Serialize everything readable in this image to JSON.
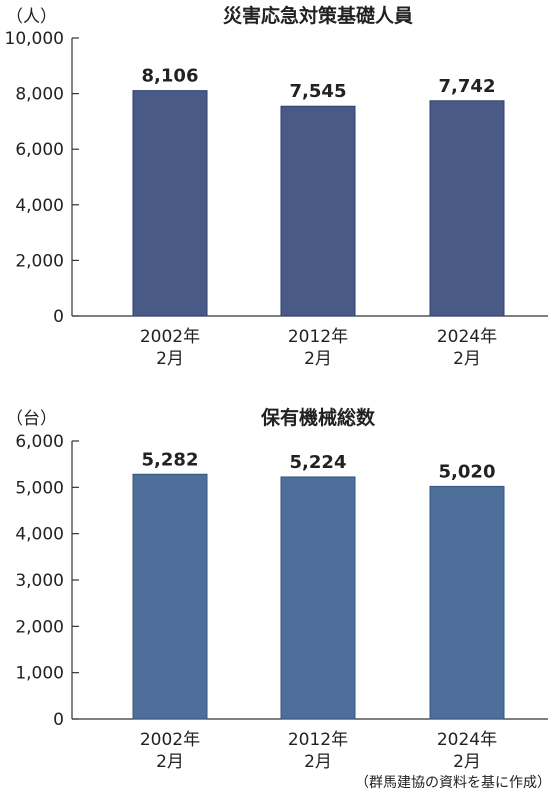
{
  "chart_data": [
    {
      "type": "bar",
      "title": "災害応急対策基礎人員",
      "unit_label": "（人）",
      "categories": [
        {
          "line1": "2002年",
          "line2": "2月"
        },
        {
          "line1": "2012年",
          "line2": "2月"
        },
        {
          "line1": "2024年",
          "line2": "2月"
        }
      ],
      "values": [
        8106,
        7545,
        7742
      ],
      "value_labels": [
        "8,106",
        "7,545",
        "7,742"
      ],
      "ylim": [
        0,
        10000
      ],
      "yticks": [
        0,
        2000,
        4000,
        6000,
        8000,
        10000
      ],
      "ytick_labels": [
        "0",
        "2,000",
        "4,000",
        "6,000",
        "8,000",
        "10,000"
      ],
      "bar_color": "#4a5a87",
      "bar_edge": "#2f3f6e"
    },
    {
      "type": "bar",
      "title": "保有機械総数",
      "unit_label": "（台）",
      "categories": [
        {
          "line1": "2002年",
          "line2": "2月"
        },
        {
          "line1": "2012年",
          "line2": "2月"
        },
        {
          "line1": "2024年",
          "line2": "2月"
        }
      ],
      "values": [
        5282,
        5224,
        5020
      ],
      "value_labels": [
        "5,282",
        "5,224",
        "5,020"
      ],
      "ylim": [
        0,
        6000
      ],
      "yticks": [
        0,
        1000,
        2000,
        3000,
        4000,
        5000,
        6000
      ],
      "ytick_labels": [
        "0",
        "1,000",
        "2,000",
        "3,000",
        "4,000",
        "5,000",
        "6,000"
      ],
      "bar_color": "#4d6f99",
      "bar_edge": "#34557f"
    }
  ],
  "source": "（群馬建協の資料を基に作成）"
}
